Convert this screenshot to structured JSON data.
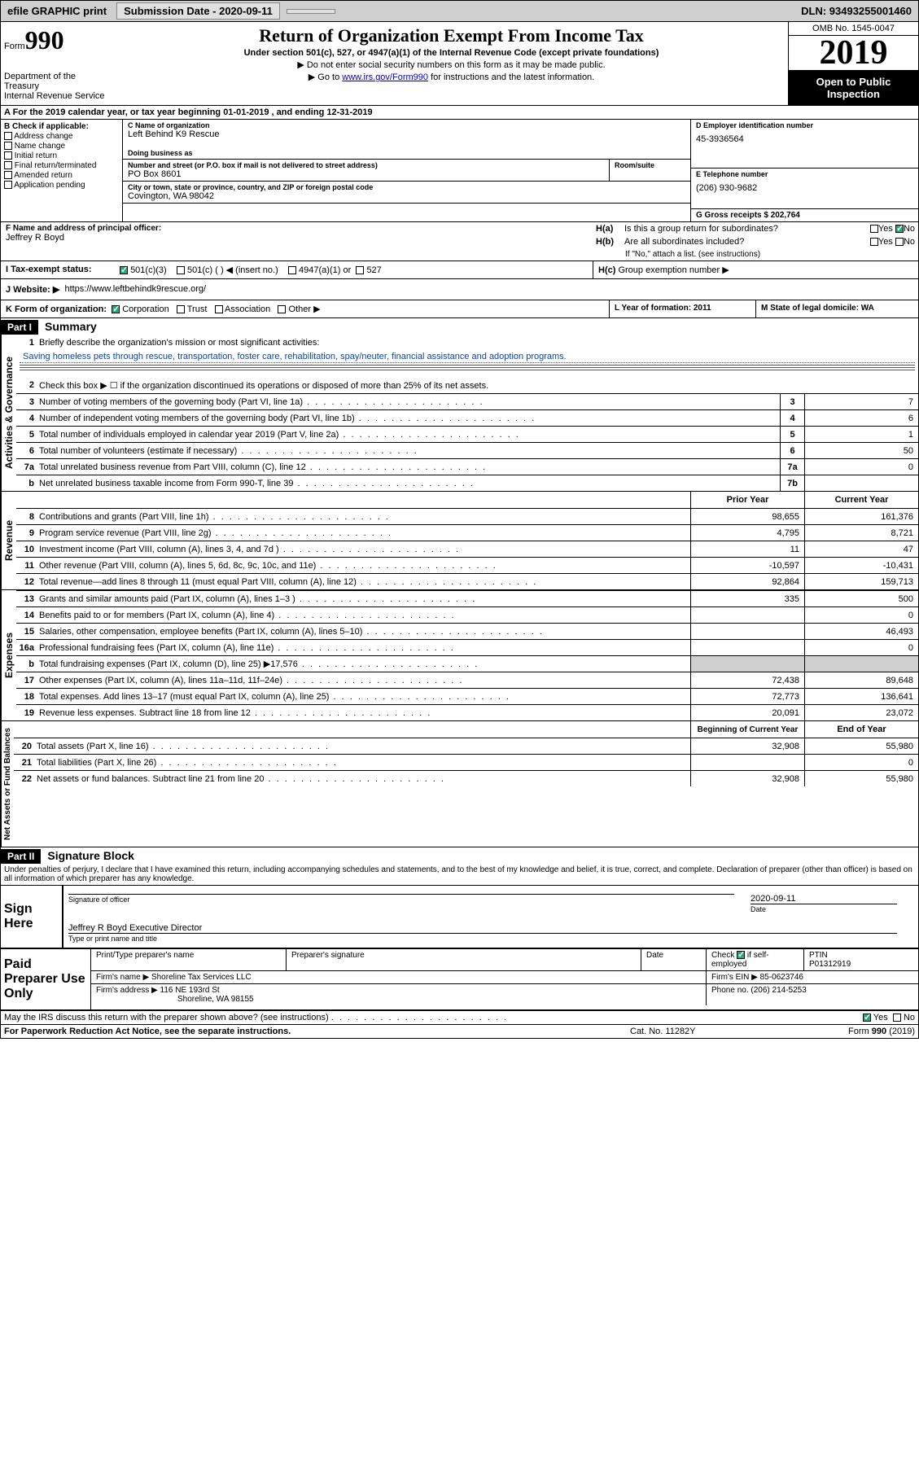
{
  "topbar": {
    "efile": "efile GRAPHIC print",
    "submission_label": "Submission Date - 2020-09-11",
    "dln_label": "DLN: 93493255001460"
  },
  "header": {
    "form_word": "Form",
    "form_num": "990",
    "dept": "Department of the Treasury\nInternal Revenue Service",
    "title": "Return of Organization Exempt From Income Tax",
    "subtitle": "Under section 501(c), 527, or 4947(a)(1) of the Internal Revenue Code (except private foundations)",
    "sub1": "▶ Do not enter social security numbers on this form as it may be made public.",
    "sub2_pre": "▶ Go to ",
    "sub2_link": "www.irs.gov/Form990",
    "sub2_post": " for instructions and the latest information.",
    "omb": "OMB No. 1545-0047",
    "year": "2019",
    "open": "Open to Public Inspection"
  },
  "row_a": "A   For the 2019 calendar year, or tax year beginning 01-01-2019    , and ending 12-31-2019",
  "box_b": {
    "title": "B Check if applicable:",
    "items": [
      "Address change",
      "Name change",
      "Initial return",
      "Final return/terminated",
      "Amended return",
      "Application pending"
    ]
  },
  "box_c": {
    "name_label": "C Name of organization",
    "name": "Left Behind K9 Rescue",
    "dba_label": "Doing business as",
    "addr_label": "Number and street (or P.O. box if mail is not delivered to street address)",
    "room_label": "Room/suite",
    "addr": "PO Box 8601",
    "city_label": "City or town, state or province, country, and ZIP or foreign postal code",
    "city": "Covington, WA  98042"
  },
  "box_d": {
    "ein_label": "D Employer identification number",
    "ein": "45-3936564",
    "tel_label": "E Telephone number",
    "tel": "(206) 930-9682",
    "gross_label": "G Gross receipts $ 202,764"
  },
  "box_f": {
    "label": "F  Name and address of principal officer:",
    "name": "Jeffrey R Boyd"
  },
  "box_h": {
    "ha_lbl": "H(a)",
    "ha_txt": "Is this a group return for subordinates?",
    "hb_lbl": "H(b)",
    "hb_txt": "Are all subordinates included?",
    "hb_note": "If \"No,\" attach a list. (see instructions)",
    "hc_lbl": "H(c)",
    "hc_txt": "Group exemption number ▶",
    "yes": "Yes",
    "no": "No"
  },
  "row_i": {
    "label": "I    Tax-exempt status:",
    "opts": [
      "501(c)(3)",
      "501(c) (  ) ◀ (insert no.)",
      "4947(a)(1) or",
      "527"
    ]
  },
  "row_j": {
    "label": "J    Website: ▶",
    "val": "https://www.leftbehindk9rescue.org/"
  },
  "row_k": {
    "label": "K Form of organization:",
    "opts": [
      "Corporation",
      "Trust",
      "Association",
      "Other ▶"
    ],
    "l_label": "L Year of formation: 2011",
    "m_label": "M State of legal domicile: WA"
  },
  "part1": {
    "hdr": "Part I",
    "title": "Summary",
    "vert1": "Activities & Governance",
    "vert2": "Revenue",
    "vert3": "Expenses",
    "vert4": "Net Assets or Fund Balances",
    "line1_label": "Briefly describe the organization's mission or most significant activities:",
    "mission": "Saving homeless pets through rescue, transportation, foster care, rehabilitation, spay/neuter, financial assistance and adoption programs.",
    "line2": "Check this box ▶ ☐  if the organization discontinued its operations or disposed of more than 25% of its net assets.",
    "lines_gov": [
      {
        "n": "3",
        "t": "Number of voting members of the governing body (Part VI, line 1a)",
        "box": "3",
        "v": "7"
      },
      {
        "n": "4",
        "t": "Number of independent voting members of the governing body (Part VI, line 1b)",
        "box": "4",
        "v": "6"
      },
      {
        "n": "5",
        "t": "Total number of individuals employed in calendar year 2019 (Part V, line 2a)",
        "box": "5",
        "v": "1"
      },
      {
        "n": "6",
        "t": "Total number of volunteers (estimate if necessary)",
        "box": "6",
        "v": "50"
      },
      {
        "n": "7a",
        "t": "Total unrelated business revenue from Part VIII, column (C), line 12",
        "box": "7a",
        "v": "0"
      },
      {
        "n": "b",
        "t": "Net unrelated business taxable income from Form 990-T, line 39",
        "box": "7b",
        "v": ""
      }
    ],
    "col_prior": "Prior Year",
    "col_curr": "Current Year",
    "lines_rev": [
      {
        "n": "8",
        "t": "Contributions and grants (Part VIII, line 1h)",
        "p": "98,655",
        "c": "161,376"
      },
      {
        "n": "9",
        "t": "Program service revenue (Part VIII, line 2g)",
        "p": "4,795",
        "c": "8,721"
      },
      {
        "n": "10",
        "t": "Investment income (Part VIII, column (A), lines 3, 4, and 7d )",
        "p": "11",
        "c": "47"
      },
      {
        "n": "11",
        "t": "Other revenue (Part VIII, column (A), lines 5, 6d, 8c, 9c, 10c, and 11e)",
        "p": "-10,597",
        "c": "-10,431"
      },
      {
        "n": "12",
        "t": "Total revenue—add lines 8 through 11 (must equal Part VIII, column (A), line 12)",
        "p": "92,864",
        "c": "159,713"
      }
    ],
    "lines_exp": [
      {
        "n": "13",
        "t": "Grants and similar amounts paid (Part IX, column (A), lines 1–3 )",
        "p": "335",
        "c": "500"
      },
      {
        "n": "14",
        "t": "Benefits paid to or for members (Part IX, column (A), line 4)",
        "p": "",
        "c": "0"
      },
      {
        "n": "15",
        "t": "Salaries, other compensation, employee benefits (Part IX, column (A), lines 5–10)",
        "p": "",
        "c": "46,493"
      },
      {
        "n": "16a",
        "t": "Professional fundraising fees (Part IX, column (A), line 11e)",
        "p": "",
        "c": "0"
      },
      {
        "n": "b",
        "t": "Total fundraising expenses (Part IX, column (D), line 25) ▶17,576",
        "p": "shaded",
        "c": "shaded"
      },
      {
        "n": "17",
        "t": "Other expenses (Part IX, column (A), lines 11a–11d, 11f–24e)",
        "p": "72,438",
        "c": "89,648"
      },
      {
        "n": "18",
        "t": "Total expenses. Add lines 13–17 (must equal Part IX, column (A), line 25)",
        "p": "72,773",
        "c": "136,641"
      },
      {
        "n": "19",
        "t": "Revenue less expenses. Subtract line 18 from line 12",
        "p": "20,091",
        "c": "23,072"
      }
    ],
    "col_beg": "Beginning of Current Year",
    "col_end": "End of Year",
    "lines_net": [
      {
        "n": "20",
        "t": "Total assets (Part X, line 16)",
        "p": "32,908",
        "c": "55,980"
      },
      {
        "n": "21",
        "t": "Total liabilities (Part X, line 26)",
        "p": "",
        "c": "0"
      },
      {
        "n": "22",
        "t": "Net assets or fund balances. Subtract line 21 from line 20",
        "p": "32,908",
        "c": "55,980"
      }
    ]
  },
  "part2": {
    "hdr": "Part II",
    "title": "Signature Block",
    "perjury": "Under penalties of perjury, I declare that I have examined this return, including accompanying schedules and statements, and to the best of my knowledge and belief, it is true, correct, and complete. Declaration of preparer (other than officer) is based on all information of which preparer has any knowledge."
  },
  "sign": {
    "left": "Sign Here",
    "date": "2020-09-11",
    "sig_label": "Signature of officer",
    "date_label": "Date",
    "name": "Jeffrey R Boyd  Executive Director",
    "name_label": "Type or print name and title"
  },
  "paid": {
    "left": "Paid Preparer Use Only",
    "h1": "Print/Type preparer's name",
    "h2": "Preparer's signature",
    "h3": "Date",
    "h4_pre": "Check",
    "h4_post": "if self-employed",
    "h5": "PTIN",
    "ptin": "P01312919",
    "firm_label": "Firm's name    ▶",
    "firm": "Shoreline Tax Services LLC",
    "ein_label": "Firm's EIN ▶",
    "ein": "85-0623746",
    "addr_label": "Firm's address ▶",
    "addr1": "116 NE 193rd St",
    "addr2": "Shoreline, WA  98155",
    "phone_label": "Phone no.",
    "phone": "(206) 214-5253"
  },
  "footer": {
    "discuss": "May the IRS discuss this return with the preparer shown above? (see instructions)",
    "yes": "Yes",
    "no": "No",
    "paperwork": "For Paperwork Reduction Act Notice, see the separate instructions.",
    "cat": "Cat. No. 11282Y",
    "form": "Form 990 (2019)"
  }
}
